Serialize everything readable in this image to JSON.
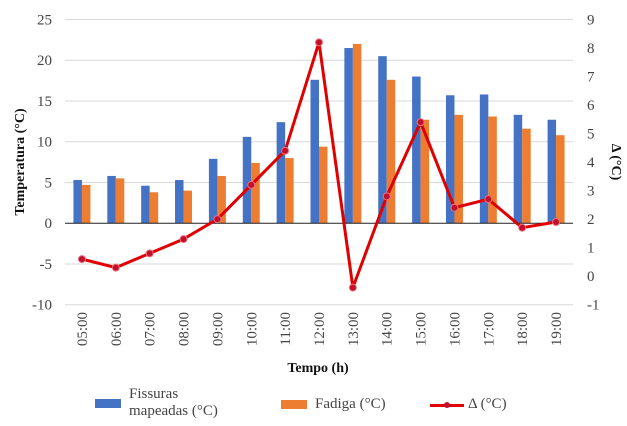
{
  "chart_data": {
    "type": "bar",
    "title": "",
    "xlabel": "Tempo (h)",
    "ylabel": "Temperatura (°C)",
    "y2label": "Δ (°C)",
    "categories": [
      "05:00",
      "06:00",
      "07:00",
      "08:00",
      "09:00",
      "10:00",
      "11:00",
      "12:00",
      "13:00",
      "14:00",
      "15:00",
      "16:00",
      "17:00",
      "18:00",
      "19:00"
    ],
    "series": [
      {
        "name": "Fissuras mapeadas (°C)",
        "type": "bar",
        "axis": "left",
        "color": "#4472c4",
        "values": [
          5.3,
          5.8,
          4.6,
          5.3,
          7.9,
          10.6,
          12.4,
          17.6,
          21.5,
          20.5,
          18.0,
          15.7,
          15.8,
          13.3,
          12.7
        ]
      },
      {
        "name": "Fadiga (°C)",
        "type": "bar",
        "axis": "left",
        "color": "#ed7d31",
        "values": [
          4.7,
          5.5,
          3.8,
          4.0,
          5.8,
          7.4,
          8.0,
          9.4,
          22.0,
          17.6,
          12.7,
          13.3,
          13.1,
          11.6,
          10.8
        ]
      },
      {
        "name": "Δ (°C)",
        "type": "line",
        "axis": "right",
        "color": "#e00000",
        "values": [
          0.6,
          0.3,
          0.8,
          1.3,
          2.0,
          3.2,
          4.4,
          8.2,
          -0.4,
          2.8,
          5.4,
          2.4,
          2.7,
          1.7,
          1.9
        ]
      }
    ],
    "ylim": [
      -10,
      25
    ],
    "yticks": [
      -10,
      -5,
      0,
      5,
      10,
      15,
      20,
      25
    ],
    "y2lim": [
      -1,
      9
    ],
    "y2ticks": [
      -1,
      0,
      1,
      2,
      3,
      4,
      5,
      6,
      7,
      8,
      9
    ],
    "grid": true,
    "legend": "bottom"
  },
  "legend": {
    "fissuras_line1": "Fissuras",
    "fissuras_line2": "mapeadas (°C)",
    "fadiga": "Fadiga (°C)",
    "delta": "Δ (°C)"
  }
}
